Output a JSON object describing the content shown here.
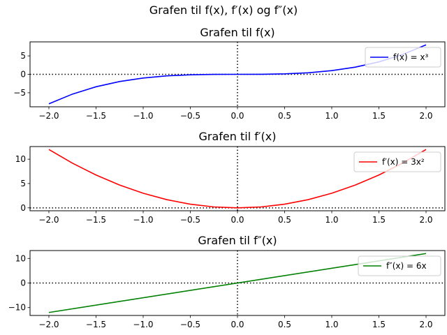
{
  "figure": {
    "suptitle": "Grafen til f(x), f′(x) og f″(x)"
  },
  "chart_data": [
    {
      "type": "line",
      "title": "Grafen til f(x)",
      "xlim": [
        -2.2,
        2.2
      ],
      "ylim": [
        -8.8,
        8.8
      ],
      "xticks": [
        -2.0,
        -1.5,
        -1.0,
        -0.5,
        0.0,
        0.5,
        1.0,
        1.5,
        2.0
      ],
      "xtick_labels": [
        "−2.0",
        "−1.5",
        "−1.0",
        "−0.5",
        "0.0",
        "0.5",
        "1.0",
        "1.5",
        "2.0"
      ],
      "yticks": [
        -5,
        0,
        5
      ],
      "ytick_labels": [
        "−5",
        "0",
        "5"
      ],
      "legend_position": "upper-right",
      "reference_lines": [
        {
          "orientation": "horizontal",
          "value": 0,
          "style": "dotted"
        },
        {
          "orientation": "vertical",
          "value": 0,
          "style": "dotted"
        }
      ],
      "series": [
        {
          "name": "f(x) = x³",
          "color": "#0000ff",
          "x": [
            -2.0,
            -1.75,
            -1.5,
            -1.25,
            -1.0,
            -0.75,
            -0.5,
            -0.25,
            0.0,
            0.25,
            0.5,
            0.75,
            1.0,
            1.25,
            1.5,
            1.75,
            2.0
          ],
          "y": [
            -8.0,
            -5.36,
            -3.375,
            -1.953,
            -1.0,
            -0.422,
            -0.125,
            -0.016,
            0.0,
            0.016,
            0.125,
            0.422,
            1.0,
            1.953,
            3.375,
            5.36,
            8.0
          ]
        }
      ]
    },
    {
      "type": "line",
      "title": "Grafen til f′(x)",
      "xlim": [
        -2.2,
        2.2
      ],
      "ylim": [
        -0.6,
        12.6
      ],
      "xticks": [
        -2.0,
        -1.5,
        -1.0,
        -0.5,
        0.0,
        0.5,
        1.0,
        1.5,
        2.0
      ],
      "xtick_labels": [
        "−2.0",
        "−1.5",
        "−1.0",
        "−0.5",
        "0.0",
        "0.5",
        "1.0",
        "1.5",
        "2.0"
      ],
      "yticks": [
        0,
        5,
        10
      ],
      "ytick_labels": [
        "0",
        "5",
        "10"
      ],
      "legend_position": "upper-right",
      "reference_lines": [
        {
          "orientation": "horizontal",
          "value": 0,
          "style": "dotted"
        },
        {
          "orientation": "vertical",
          "value": 0,
          "style": "dotted"
        }
      ],
      "series": [
        {
          "name": "f′(x) = 3x²",
          "color": "#ff0000",
          "x": [
            -2.0,
            -1.75,
            -1.5,
            -1.25,
            -1.0,
            -0.75,
            -0.5,
            -0.25,
            0.0,
            0.25,
            0.5,
            0.75,
            1.0,
            1.25,
            1.5,
            1.75,
            2.0
          ],
          "y": [
            12.0,
            9.188,
            6.75,
            4.688,
            3.0,
            1.688,
            0.75,
            0.188,
            0.0,
            0.188,
            0.75,
            1.688,
            3.0,
            4.688,
            6.75,
            9.188,
            12.0
          ]
        }
      ]
    },
    {
      "type": "line",
      "title": "Grafen til f″(x)",
      "xlim": [
        -2.2,
        2.2
      ],
      "ylim": [
        -13.2,
        13.2
      ],
      "xticks": [
        -2.0,
        -1.5,
        -1.0,
        -0.5,
        0.0,
        0.5,
        1.0,
        1.5,
        2.0
      ],
      "xtick_labels": [
        "−2.0",
        "−1.5",
        "−1.0",
        "−0.5",
        "0.0",
        "0.5",
        "1.0",
        "1.5",
        "2.0"
      ],
      "yticks": [
        -10,
        0,
        10
      ],
      "ytick_labels": [
        "−10",
        "0",
        "10"
      ],
      "legend_position": "upper-right",
      "reference_lines": [
        {
          "orientation": "horizontal",
          "value": 0,
          "style": "dotted"
        },
        {
          "orientation": "vertical",
          "value": 0,
          "style": "dotted"
        }
      ],
      "series": [
        {
          "name": "f″(x) = 6x",
          "color": "#008000",
          "x": [
            -2.0,
            2.0
          ],
          "y": [
            -12.0,
            12.0
          ]
        }
      ]
    }
  ]
}
